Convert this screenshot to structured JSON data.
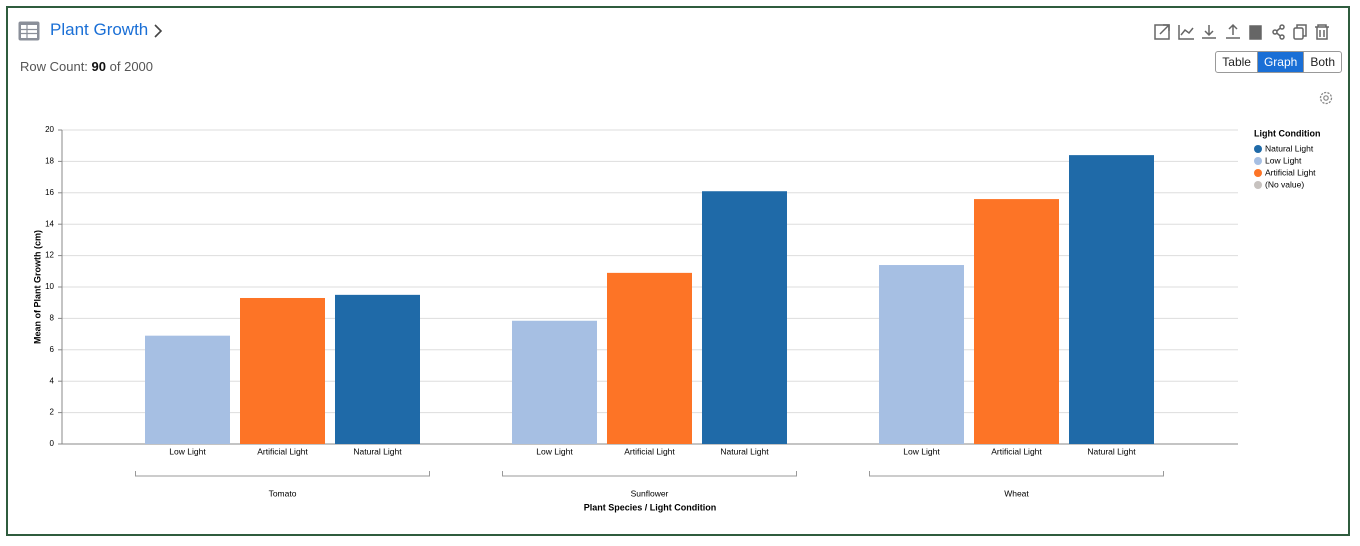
{
  "header": {
    "title": "Plant Growth",
    "row_count_label": "Row Count:",
    "row_count": "90",
    "row_total": "of 2000",
    "views": [
      "Table",
      "Graph",
      "Both"
    ]
  },
  "chart_data": {
    "type": "grouped-bar",
    "x_label": "Plant Species / Light Condition",
    "y_label": "Mean of Plant Growth (cm)",
    "categories": [
      "Tomato",
      "Sunflower",
      "Wheat"
    ],
    "series": [
      {
        "name": "Low Light",
        "color": "#a6bfe3",
        "values": [
          6.9,
          7.85,
          11.4
        ]
      },
      {
        "name": "Artificial Light",
        "color": "#fd7426",
        "values": [
          9.3,
          10.9,
          15.6
        ]
      },
      {
        "name": "Natural Light",
        "color": "#1f6aa8",
        "values": [
          9.5,
          16.1,
          18.4
        ]
      }
    ],
    "ylim": [
      0,
      20
    ],
    "yticks": [
      0,
      2,
      4,
      6,
      8,
      10,
      12,
      14,
      16,
      18,
      20
    ],
    "grid": true,
    "legend": {
      "title": "Light Condition",
      "position": "right",
      "entries": [
        {
          "name": "Natural Light",
          "color": "#1f6aa8"
        },
        {
          "name": "Low Light",
          "color": "#a6bfe3"
        },
        {
          "name": "Artificial Light",
          "color": "#fd7426"
        },
        {
          "name": "(No value)",
          "color": "#c7c2bf"
        }
      ]
    }
  }
}
